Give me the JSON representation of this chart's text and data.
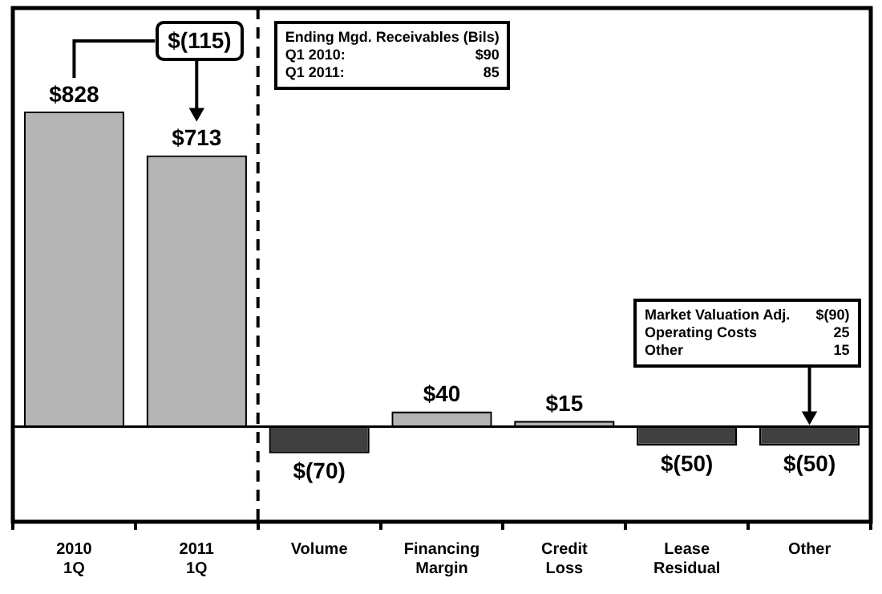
{
  "chart_data": {
    "type": "bar",
    "categories": [
      "2010\n1Q",
      "2011\n1Q",
      "Volume",
      "Financing\nMargin",
      "Credit\nLoss",
      "Lease\nResidual",
      "Other"
    ],
    "values": [
      828,
      713,
      -70,
      40,
      15,
      -50,
      -50
    ],
    "value_labels": [
      "$828",
      "$713",
      "$(70)",
      "$40",
      "$15",
      "$(50)",
      "$(50)"
    ],
    "colors": [
      "#b4b4b4",
      "#b4b4b4",
      "#404040",
      "#b4b4b4",
      "#b4b4b4",
      "#404040",
      "#404040"
    ],
    "ylim": [
      -250,
      1100
    ],
    "tick_labels": "x",
    "legend": false,
    "annotations": [
      "$(115)",
      "Ending Mgd. Receivables (Bils)\nQ1 2010:\t$90\nQ1 2011:\t85",
      "Market Valuation Adj.\t$(90)\nOperating Costs\t25\nOther\t15"
    ]
  }
}
